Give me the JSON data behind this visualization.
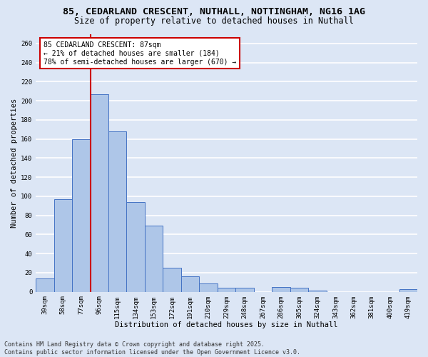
{
  "title_line1": "85, CEDARLAND CRESCENT, NUTHALL, NOTTINGHAM, NG16 1AG",
  "title_line2": "Size of property relative to detached houses in Nuthall",
  "xlabel": "Distribution of detached houses by size in Nuthall",
  "ylabel": "Number of detached properties",
  "categories": [
    "39sqm",
    "58sqm",
    "77sqm",
    "96sqm",
    "115sqm",
    "134sqm",
    "153sqm",
    "172sqm",
    "191sqm",
    "210sqm",
    "229sqm",
    "248sqm",
    "267sqm",
    "286sqm",
    "305sqm",
    "324sqm",
    "343sqm",
    "362sqm",
    "381sqm",
    "400sqm",
    "419sqm"
  ],
  "values": [
    14,
    97,
    160,
    207,
    168,
    94,
    69,
    25,
    16,
    9,
    4,
    4,
    0,
    5,
    4,
    1,
    0,
    0,
    0,
    0,
    3
  ],
  "bar_color": "#aec6e8",
  "bar_edge_color": "#4472c4",
  "background_color": "#dce6f5",
  "grid_color": "#ffffff",
  "vline_x_index": 2.5,
  "vline_color": "#cc0000",
  "annotation_text": "85 CEDARLAND CRESCENT: 87sqm\n← 21% of detached houses are smaller (184)\n78% of semi-detached houses are larger (670) →",
  "annotation_box_color": "#ffffff",
  "annotation_box_edge": "#cc0000",
  "ylim": [
    0,
    270
  ],
  "yticks": [
    0,
    20,
    40,
    60,
    80,
    100,
    120,
    140,
    160,
    180,
    200,
    220,
    240,
    260
  ],
  "footer_text": "Contains HM Land Registry data © Crown copyright and database right 2025.\nContains public sector information licensed under the Open Government Licence v3.0.",
  "title_fontsize": 9.5,
  "subtitle_fontsize": 8.5,
  "axis_label_fontsize": 7.5,
  "tick_fontsize": 6.5,
  "annotation_fontsize": 7,
  "footer_fontsize": 6
}
